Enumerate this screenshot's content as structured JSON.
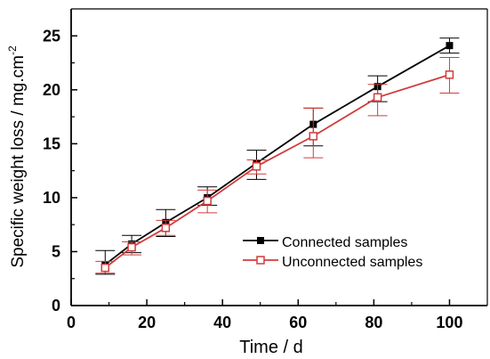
{
  "chart_data": {
    "type": "line",
    "xlabel": "Time / d",
    "ylabel_main": "Specific weight loss / mg.cm",
    "ylabel_sup": "-2",
    "xlim": [
      0,
      110
    ],
    "ylim": [
      0,
      27.5
    ],
    "xticks": [
      0,
      20,
      40,
      60,
      80,
      100
    ],
    "yticks": [
      0,
      5,
      10,
      15,
      20,
      25
    ],
    "grid": false,
    "legend_position": "center-right",
    "series": [
      {
        "name": "Connected samples",
        "color": "#000000",
        "marker": "filled-square",
        "x": [
          9,
          16,
          25,
          36,
          49,
          64,
          81,
          100
        ],
        "y": [
          3.8,
          5.7,
          7.7,
          10.0,
          13.2,
          16.8,
          20.3,
          24.1
        ],
        "err_low": [
          2.9,
          4.9,
          6.4,
          9.3,
          11.7,
          14.8,
          18.9,
          23.4
        ],
        "err_high": [
          5.1,
          6.5,
          8.9,
          11.0,
          14.4,
          18.3,
          21.3,
          24.8
        ]
      },
      {
        "name": "Unconnected samples",
        "color": "#d13c3c",
        "marker": "open-square",
        "x": [
          9,
          16,
          25,
          36,
          49,
          64,
          81,
          100
        ],
        "y": [
          3.5,
          5.4,
          7.2,
          9.7,
          12.9,
          15.7,
          19.3,
          21.4
        ],
        "err_low": [
          3.0,
          4.7,
          6.5,
          8.6,
          12.2,
          13.7,
          17.6,
          19.7
        ],
        "err_high": [
          4.1,
          5.9,
          7.9,
          10.7,
          13.5,
          18.3,
          20.5,
          23.0
        ]
      }
    ]
  }
}
